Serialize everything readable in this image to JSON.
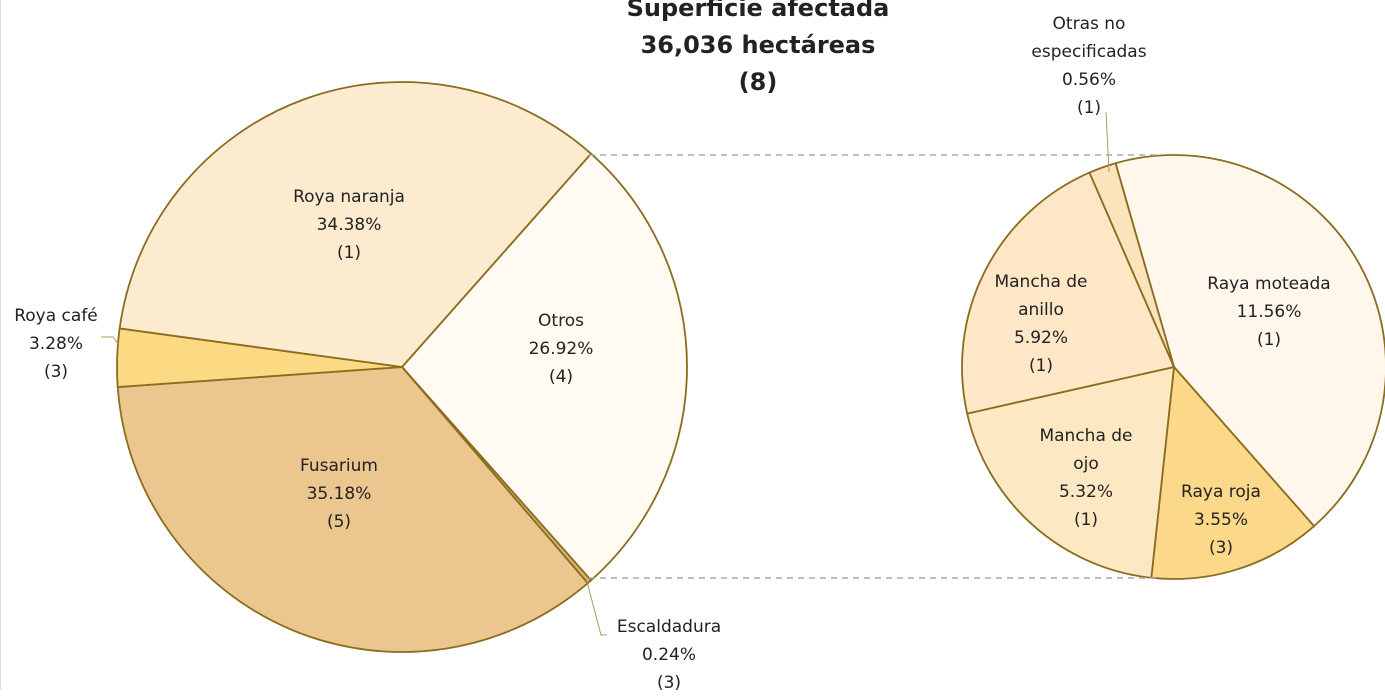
{
  "chart_data": [
    {
      "type": "pie",
      "title": "Superficie afectada",
      "subtitle": "36,036 hectáreas",
      "note": "(8)",
      "categories": [
        "Otros",
        "Escaldadura",
        "Fusarium",
        "Roya café",
        "Roya naranja"
      ],
      "values": [
        26.92,
        0.24,
        35.18,
        3.28,
        34.38
      ],
      "value_labels": [
        "26.92%",
        "0.24%",
        "35.18%",
        "3.28%",
        "34.38%"
      ],
      "counts": [
        "(4)",
        "(3)",
        "(5)",
        "(3)",
        "(1)"
      ],
      "colors": [
        "#fffaf2",
        "#d9b878",
        "#ebc68e",
        "#fcd983",
        "#fdebd0"
      ]
    },
    {
      "type": "pie",
      "categories": [
        "Raya moteada",
        "Raya roja",
        "Mancha de ojo",
        "Mancha de anillo",
        "Otras no especificadas"
      ],
      "values": [
        11.56,
        3.55,
        5.32,
        5.92,
        0.56
      ],
      "value_labels": [
        "11.56%",
        "3.55%",
        "5.32%",
        "5.92%",
        "0.56%"
      ],
      "counts": [
        "(1)",
        "(3)",
        "(1)",
        "(1)",
        "(1)"
      ],
      "colors": [
        "#fff6ec",
        "#fcd98a",
        "#fde8c4",
        "#fde7c6",
        "#fde3bb"
      ]
    }
  ]
}
